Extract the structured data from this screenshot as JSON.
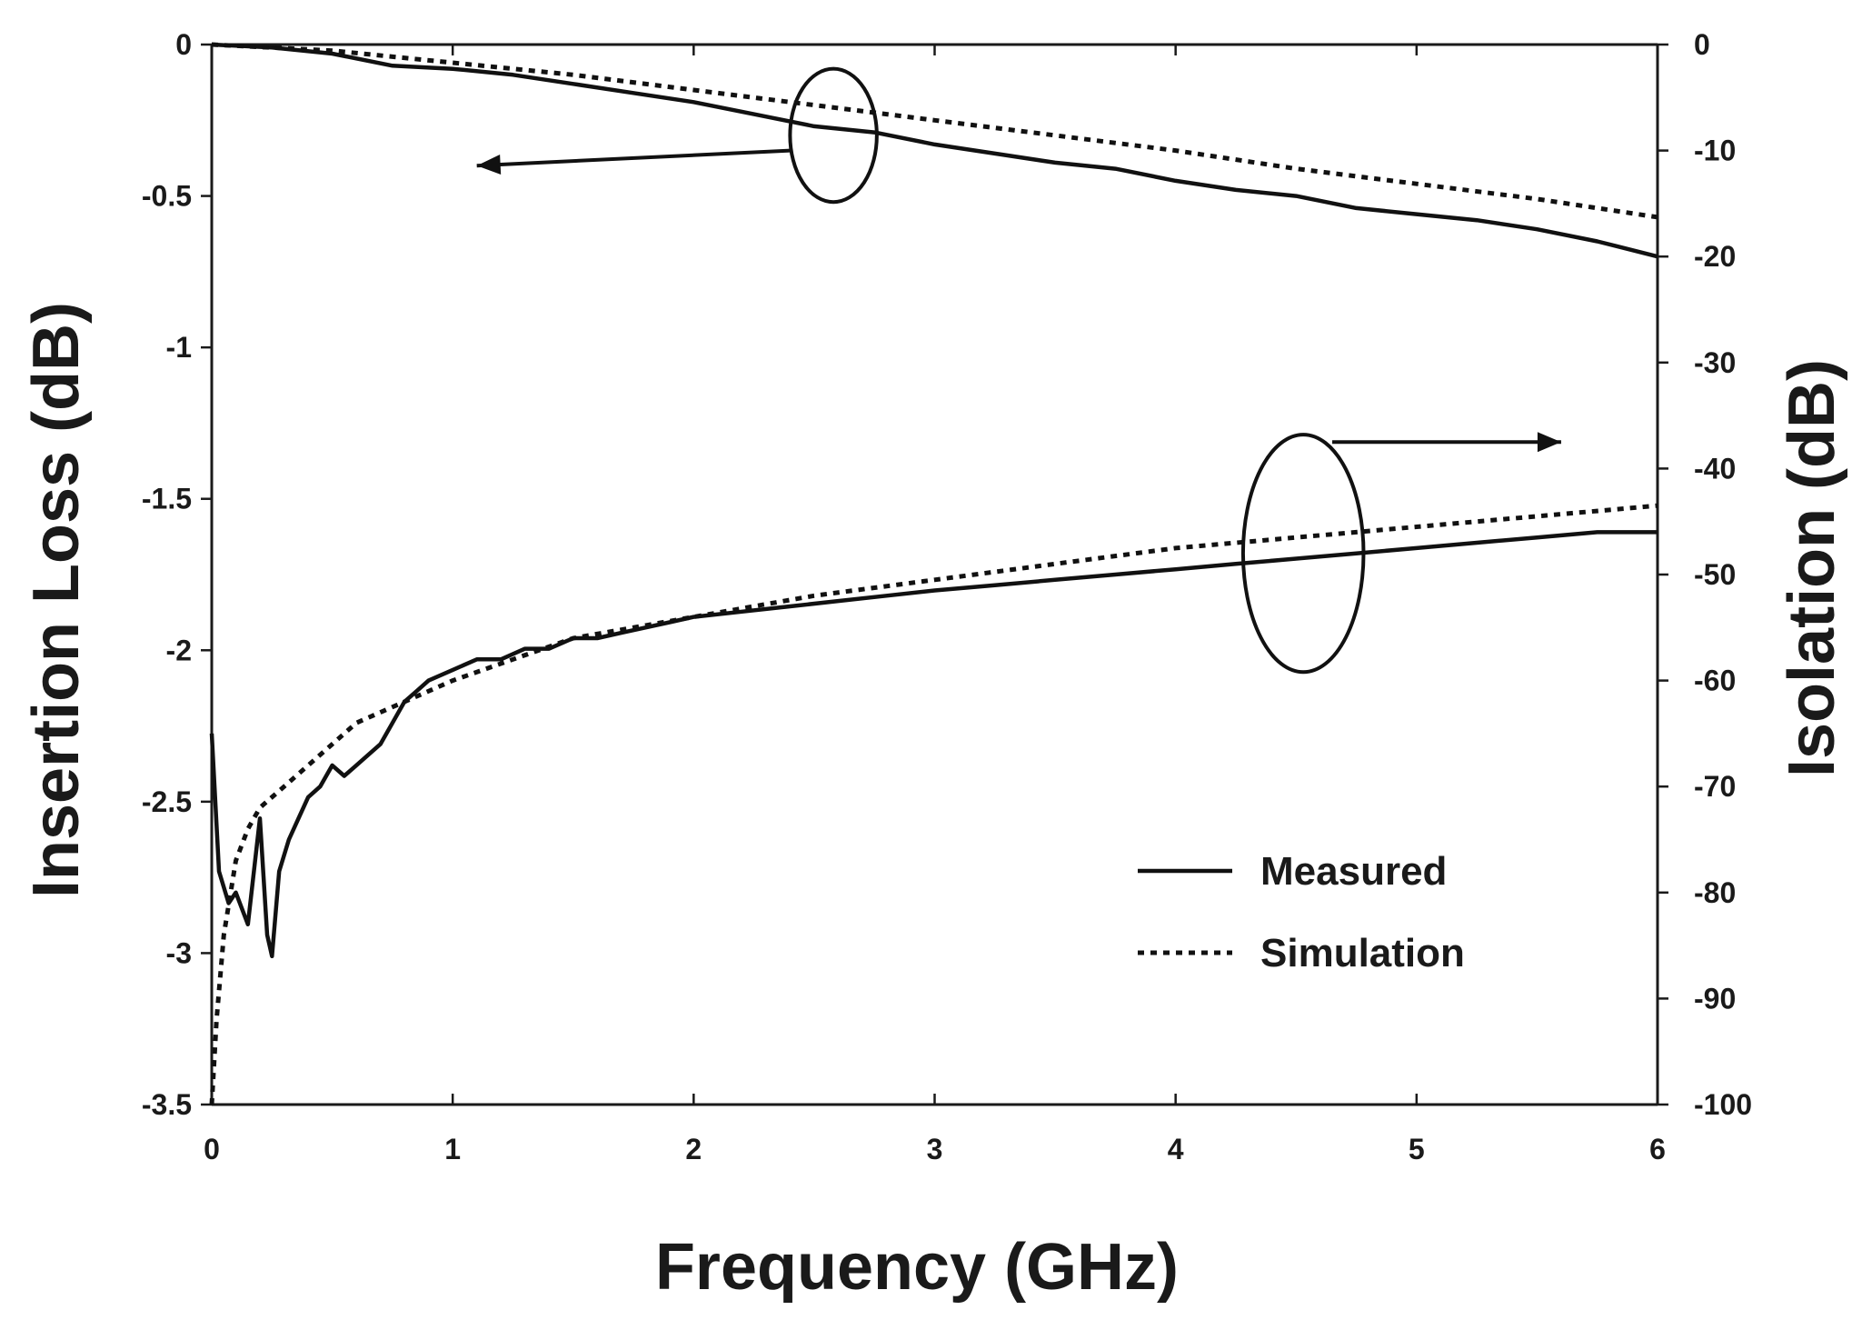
{
  "chart_data": {
    "type": "line",
    "xlabel": "Frequency (GHz)",
    "ylabel": "Insertion Loss (dB)",
    "y2label": "Isolation (dB)",
    "xlim": [
      0,
      6
    ],
    "ylim": [
      -3.5,
      0
    ],
    "y2lim": [
      -100,
      0
    ],
    "x_ticks": [
      "0",
      "1",
      "2",
      "3",
      "4",
      "5",
      "6"
    ],
    "y_ticks": [
      "0",
      "-0.5",
      "-1",
      "-1.5",
      "-2",
      "-2.5",
      "-3",
      "-3.5"
    ],
    "y2_ticks": [
      "0",
      "-10",
      "-20",
      "-30",
      "-40",
      "-50",
      "-60",
      "-70",
      "-80",
      "-90",
      "-100"
    ],
    "grid": false,
    "legend": {
      "position": "bottom-right",
      "entries": [
        {
          "label": "Measured",
          "style": "solid"
        },
        {
          "label": "Simulation",
          "style": "dotted"
        }
      ]
    },
    "series": [
      {
        "group": "insertion-loss",
        "axis": "left",
        "style": "solid",
        "legend": "Measured",
        "x": [
          0,
          0.25,
          0.5,
          0.75,
          1,
          1.25,
          1.5,
          1.75,
          2,
          2.25,
          2.5,
          2.75,
          3,
          3.25,
          3.5,
          3.75,
          4,
          4.25,
          4.5,
          4.75,
          5,
          5.25,
          5.5,
          5.75,
          6
        ],
        "values": [
          0,
          -0.01,
          -0.03,
          -0.07,
          -0.08,
          -0.1,
          -0.13,
          -0.16,
          -0.19,
          -0.23,
          -0.27,
          -0.29,
          -0.33,
          -0.36,
          -0.39,
          -0.41,
          -0.45,
          -0.48,
          -0.5,
          -0.54,
          -0.56,
          -0.58,
          -0.61,
          -0.65,
          -0.7
        ]
      },
      {
        "group": "insertion-loss",
        "axis": "left",
        "style": "dotted",
        "legend": "Simulation",
        "x": [
          0,
          0.5,
          1,
          1.5,
          2,
          2.5,
          3,
          3.5,
          4,
          4.5,
          5,
          5.5,
          6
        ],
        "values": [
          0,
          -0.02,
          -0.06,
          -0.1,
          -0.15,
          -0.2,
          -0.25,
          -0.3,
          -0.35,
          -0.41,
          -0.46,
          -0.51,
          -0.57
        ]
      },
      {
        "group": "isolation",
        "axis": "right",
        "style": "solid",
        "legend": "Measured",
        "x": [
          0,
          0.03,
          0.07,
          0.1,
          0.15,
          0.2,
          0.23,
          0.25,
          0.28,
          0.32,
          0.36,
          0.4,
          0.45,
          0.5,
          0.55,
          0.6,
          0.65,
          0.7,
          0.75,
          0.8,
          0.85,
          0.9,
          1,
          1.1,
          1.2,
          1.3,
          1.4,
          1.5,
          1.6,
          1.7,
          1.8,
          1.9,
          2,
          2.2,
          2.4,
          2.6,
          2.8,
          3,
          3.25,
          3.5,
          3.75,
          4,
          4.25,
          4.5,
          4.75,
          5,
          5.25,
          5.5,
          5.75,
          6
        ],
        "values": [
          -65,
          -78,
          -81,
          -80,
          -83,
          -73,
          -84,
          -86,
          -78,
          -75,
          -73,
          -71,
          -70,
          -68,
          -69,
          -68,
          -67,
          -66,
          -64,
          -62,
          -61,
          -60,
          -59,
          -58,
          -58,
          -57,
          -57,
          -56,
          -56,
          -55.5,
          -55,
          -54.5,
          -54,
          -53.5,
          -53,
          -52.5,
          -52,
          -51.5,
          -51,
          -50.5,
          -50,
          -49.5,
          -49,
          -48.5,
          -48,
          -47.5,
          -47,
          -46.5,
          -46,
          -46
        ]
      },
      {
        "group": "isolation",
        "axis": "right",
        "style": "dotted",
        "legend": "Simulation",
        "x": [
          0,
          0.02,
          0.05,
          0.1,
          0.15,
          0.2,
          0.3,
          0.4,
          0.5,
          0.6,
          0.8,
          1,
          1.25,
          1.5,
          2,
          2.5,
          3,
          3.5,
          4,
          4.5,
          5,
          5.5,
          6
        ],
        "values": [
          -100,
          -92,
          -84,
          -77,
          -74,
          -72,
          -70,
          -68,
          -66,
          -64,
          -62,
          -60,
          -58,
          -56,
          -54,
          -52,
          -50.5,
          -49,
          -47.5,
          -46.5,
          -45.5,
          -44.5,
          -43.5
        ]
      }
    ],
    "annotations": [
      {
        "type": "ellipse",
        "group": "insertion-loss",
        "cx": 2.58,
        "cy": -0.3,
        "rx": 0.18,
        "ry": 0.22
      },
      {
        "type": "arrow",
        "group": "insertion-loss",
        "from": [
          2.4,
          -0.35
        ],
        "to": [
          1.1,
          -0.4
        ],
        "direction": "left"
      },
      {
        "type": "ellipse",
        "group": "isolation",
        "cx": 4.53,
        "cy": -48,
        "rx": 0.25,
        "ry": 11.2
      },
      {
        "type": "arrow",
        "group": "isolation",
        "from": [
          4.65,
          -37.5
        ],
        "to": [
          5.6,
          -37.5
        ],
        "direction": "right"
      }
    ]
  }
}
